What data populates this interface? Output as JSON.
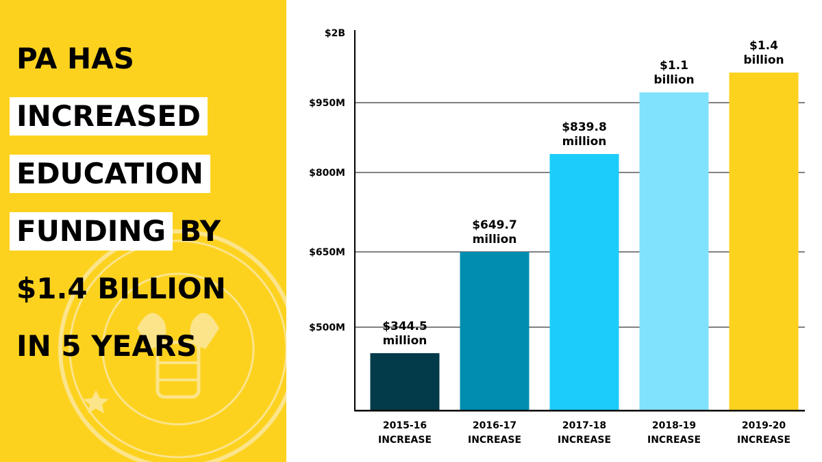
{
  "headline": {
    "lines": [
      {
        "segments": [
          {
            "text": "PA HAS",
            "boxed": false
          }
        ]
      },
      {
        "segments": [
          {
            "text": "INCREASED",
            "boxed": true
          }
        ]
      },
      {
        "segments": [
          {
            "text": "EDUCATION",
            "boxed": true
          }
        ]
      },
      {
        "segments": [
          {
            "text": "FUNDING",
            "boxed": true
          },
          {
            "text": "BY",
            "boxed": false
          }
        ]
      },
      {
        "segments": [
          {
            "text": "$1.4 BILLION",
            "boxed": false
          }
        ]
      },
      {
        "segments": [
          {
            "text": "IN 5 YEARS",
            "boxed": false
          }
        ]
      }
    ]
  },
  "colors": {
    "brand_yellow": "#fdd21f",
    "seal_tint": "#fbe48a"
  },
  "chart_data": {
    "type": "bar",
    "categories": [
      [
        "2015-16",
        "INCREASE"
      ],
      [
        "2016-17",
        "INCREASE"
      ],
      [
        "2017-18",
        "INCREASE"
      ],
      [
        "2018-19",
        "INCREASE"
      ],
      [
        "2019-20",
        "INCREASE"
      ]
    ],
    "values_millions": [
      344.5,
      649.7,
      839.8,
      1100,
      1400
    ],
    "value_labels": [
      [
        "$344.5",
        "million"
      ],
      [
        "$649.7",
        "million"
      ],
      [
        "$839.8",
        "million"
      ],
      [
        "$1.1",
        "billion"
      ],
      [
        "$1.4",
        "billion"
      ]
    ],
    "bar_colors": [
      "#043b4b",
      "#008db0",
      "#1ccdfb",
      "#80e2fc",
      "#fdd21f"
    ],
    "y_ticks": [
      {
        "label": "$500M"
      },
      {
        "label": "$650M"
      },
      {
        "label": "$800M"
      },
      {
        "label": "$950M"
      },
      {
        "label": "$2B"
      }
    ],
    "y_scale_note": "axis is non-linear; gridlines at $500M, $650M, $800M, $950M; top tick $2B",
    "grid": true,
    "legend": "none"
  }
}
